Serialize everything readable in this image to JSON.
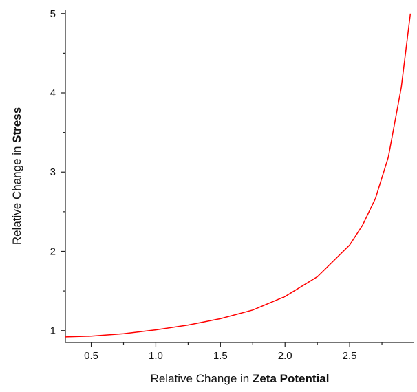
{
  "chart_data": {
    "type": "line",
    "title": "",
    "xlabel": {
      "prefix": "Relative Change in ",
      "bold": "Zeta Potential"
    },
    "ylabel": {
      "prefix": "Relative Change in ",
      "bold": "Stress"
    },
    "xlim": [
      0.3,
      3.0
    ],
    "ylim": [
      0.85,
      5.05
    ],
    "x_ticks": [
      0.5,
      1.0,
      1.5,
      2.0,
      2.5
    ],
    "x_tick_labels": [
      "0.5",
      "1.0",
      "1.5",
      "2.0",
      "2.5"
    ],
    "x_minor_ticks": [
      0.75,
      1.25,
      1.75,
      2.25,
      2.75
    ],
    "y_ticks": [
      1,
      2,
      3,
      4,
      5
    ],
    "y_tick_labels": [
      "1",
      "2",
      "3",
      "4",
      "5"
    ],
    "y_minor_ticks": [
      1.5,
      2.5,
      3.5,
      4.5
    ],
    "grid": false,
    "legend": "none",
    "series": [
      {
        "color": "#ff0000",
        "x": [
          0.3,
          0.5,
          0.75,
          1.0,
          1.25,
          1.5,
          1.75,
          2.0,
          2.25,
          2.5,
          2.6,
          2.7,
          2.8,
          2.9,
          2.97
        ],
        "y": [
          0.92,
          0.93,
          0.96,
          1.01,
          1.07,
          1.15,
          1.26,
          1.43,
          1.68,
          2.08,
          2.33,
          2.67,
          3.19,
          4.07,
          5.0
        ]
      }
    ]
  }
}
